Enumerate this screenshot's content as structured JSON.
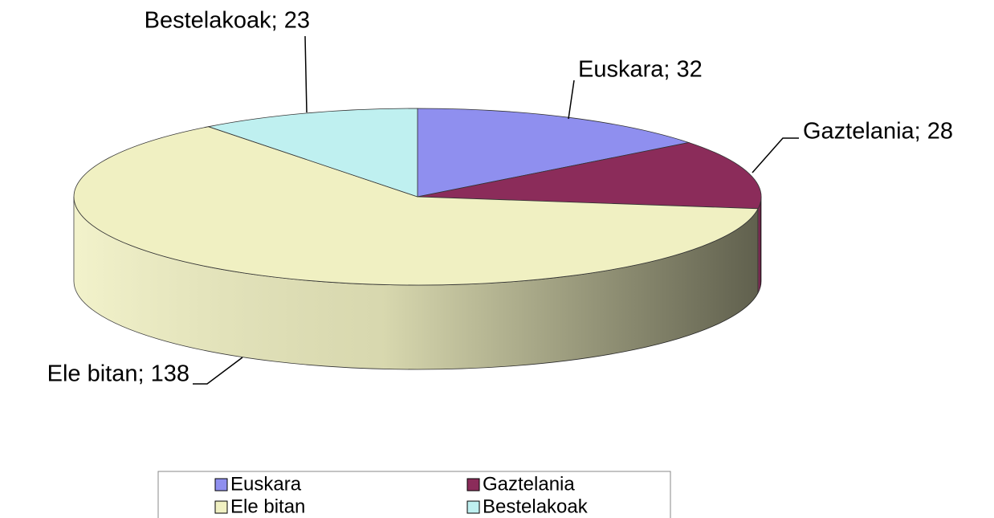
{
  "chart_data": {
    "type": "pie",
    "categories": [
      "Euskara",
      "Gaztelania",
      "Ele bitan",
      "Bestelakoak"
    ],
    "values": [
      32,
      28,
      138,
      23
    ],
    "value_labels": [
      "Euskara; 32",
      "Gaztelania; 28",
      "Ele bitan; 138",
      "Bestelakoak; 23"
    ],
    "colors": [
      "#8f8fef",
      "#8b2c5a",
      "#f0f0c2",
      "#bff0f0"
    ],
    "legend": "bottom"
  }
}
